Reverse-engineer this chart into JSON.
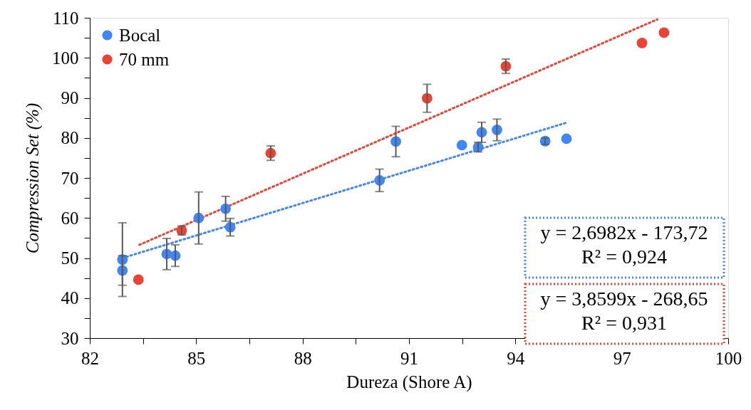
{
  "chart_data": {
    "type": "scatter",
    "xlabel": "Dureza (Shore A)",
    "ylabel": "Compression Set (%)",
    "xlim": [
      82,
      100
    ],
    "xticks": [
      82,
      {
        "value": 83.5,
        "label": null
      },
      85,
      {
        "value": 86.5,
        "label": null
      },
      88,
      {
        "value": 89.5,
        "label": null
      },
      91,
      {
        "value": 92.5,
        "label": null
      },
      94,
      {
        "value": 95.5,
        "label": null
      },
      97,
      {
        "value": 98.5,
        "label": null
      },
      100
    ],
    "ylim": [
      30,
      110
    ],
    "yticks": [
      30,
      {
        "value": 35,
        "label": null
      },
      40,
      {
        "value": 45,
        "label": null
      },
      50,
      {
        "value": 55,
        "label": null
      },
      60,
      {
        "value": 65,
        "label": null
      },
      70,
      {
        "value": 75,
        "label": null
      },
      80,
      {
        "value": 85,
        "label": null
      },
      90,
      {
        "value": 95,
        "label": null
      },
      100,
      {
        "value": 105,
        "label": null
      },
      110
    ],
    "grid": false,
    "legend": "top left",
    "marker": "circle",
    "series": [
      {
        "name": "Bocal",
        "color": "#4285f4",
        "x": [
          82.92,
          82.92,
          84.17,
          84.41,
          85.07,
          85.83,
          85.96,
          90.17,
          90.63,
          92.49,
          92.95,
          93.05,
          93.48,
          94.84,
          95.44
        ],
        "values": [
          49.6,
          46.9,
          51.0,
          50.6,
          60.0,
          62.3,
          57.7,
          69.4,
          79.1,
          78.2,
          77.7,
          81.4,
          82.0,
          79.2,
          79.8
        ],
        "errors": [
          9.2,
          3.7,
          3.9,
          2.7,
          6.5,
          3.1,
          2.2,
          2.8,
          3.8,
          null,
          1.2,
          2.5,
          2.7,
          0.8,
          null
        ]
      },
      {
        "name": "70 mm",
        "color": "#ea4335",
        "x": [
          83.37,
          84.59,
          87.1,
          91.51,
          93.73,
          97.57,
          98.19
        ],
        "values": [
          44.6,
          56.9,
          76.2,
          89.9,
          97.9,
          103.7,
          106.3
        ],
        "errors": [
          null,
          1.1,
          1.8,
          3.5,
          1.8,
          null,
          null
        ]
      },
      {
        "type": "line",
        "color": "#4285f4",
        "line_style": "dotted",
        "marker": "none",
        "x": [
          82.92,
          95.44
        ],
        "values": [
          50.0,
          83.8
        ]
      },
      {
        "type": "line",
        "color": "#ea4335",
        "line_style": "dotted",
        "marker": "none",
        "x": [
          83.4,
          98.0
        ],
        "values": [
          53.3,
          109.6
        ]
      }
    ],
    "annotations": [
      "y = 2,6982x - 173,72\nR² = 0,924",
      "y = 3,8599x - 268,65\nR² = 0,931"
    ]
  }
}
